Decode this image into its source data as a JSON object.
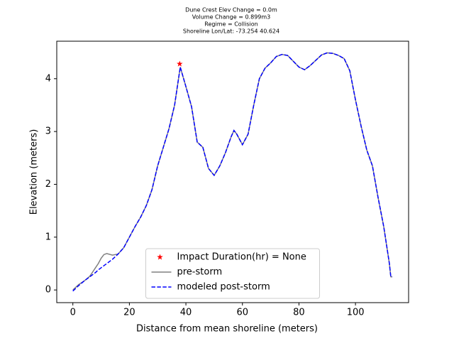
{
  "chart_data": {
    "type": "line",
    "title": [
      "Dune Crest Elev Change = 0.0m",
      "Volume Change = 0.899m3",
      "Regime = Collision",
      "Shoreline Lon/Lat: -73.254 40.624"
    ],
    "x_label": "Distance from mean shoreline (meters)",
    "y_label": "Elevation (meters)",
    "xlim": [
      -5.7,
      118.8
    ],
    "ylim": [
      -0.24,
      4.71
    ],
    "xticks": [
      0,
      20,
      40,
      60,
      80,
      100
    ],
    "yticks": [
      0,
      1,
      2,
      3,
      4
    ],
    "legend": "lower center",
    "x": [
      0,
      2,
      4,
      6,
      8,
      9,
      10,
      11,
      12,
      14,
      16,
      18,
      20,
      22,
      24,
      26,
      28,
      30,
      32,
      34,
      36,
      38,
      40,
      42,
      44,
      46,
      48,
      50,
      52,
      54,
      56,
      57,
      58,
      60,
      62,
      64,
      66,
      68,
      70,
      72,
      74,
      76,
      78,
      80,
      82,
      84,
      86,
      88,
      90,
      92,
      94,
      96,
      98,
      100,
      102,
      104,
      106,
      108,
      110,
      112,
      112.5,
      113
    ],
    "series": [
      {
        "name": "Impact Duration(hr) = None",
        "color": "#ff0000",
        "style": "star",
        "x": [
          37.8
        ],
        "values": [
          4.28
        ]
      },
      {
        "name": "pre-storm",
        "color": "#808080",
        "style": "solid",
        "values": [
          0,
          0.1,
          0.17,
          0.26,
          0.42,
          0.5,
          0.6,
          0.67,
          0.69,
          0.66,
          0.68,
          0.8,
          1.0,
          1.2,
          1.38,
          1.6,
          1.9,
          2.35,
          2.7,
          3.05,
          3.5,
          4.22,
          3.85,
          3.47,
          2.8,
          2.7,
          2.3,
          2.17,
          2.35,
          2.6,
          2.9,
          3.02,
          2.95,
          2.75,
          2.95,
          3.5,
          4.0,
          4.2,
          4.3,
          4.42,
          4.46,
          4.44,
          4.33,
          4.22,
          4.17,
          4.25,
          4.35,
          4.45,
          4.49,
          4.48,
          4.44,
          4.38,
          4.15,
          3.6,
          3.1,
          2.65,
          2.35,
          1.75,
          1.2,
          0.5,
          0.25,
          0.25
        ]
      },
      {
        "name": "modeled post-storm",
        "color": "#0000ff",
        "style": "dashed",
        "values": [
          -0.02,
          0.08,
          0.17,
          0.25,
          0.33,
          0.38,
          0.42,
          0.46,
          0.5,
          0.58,
          0.68,
          0.8,
          1.0,
          1.2,
          1.38,
          1.6,
          1.9,
          2.35,
          2.7,
          3.05,
          3.5,
          4.22,
          3.85,
          3.47,
          2.8,
          2.7,
          2.3,
          2.17,
          2.35,
          2.6,
          2.9,
          3.02,
          2.95,
          2.75,
          2.95,
          3.5,
          4.0,
          4.2,
          4.3,
          4.42,
          4.46,
          4.44,
          4.33,
          4.22,
          4.17,
          4.25,
          4.35,
          4.45,
          4.49,
          4.48,
          4.44,
          4.38,
          4.15,
          3.6,
          3.1,
          2.65,
          2.35,
          1.75,
          1.2,
          0.5,
          0.25,
          0.25
        ]
      }
    ]
  }
}
